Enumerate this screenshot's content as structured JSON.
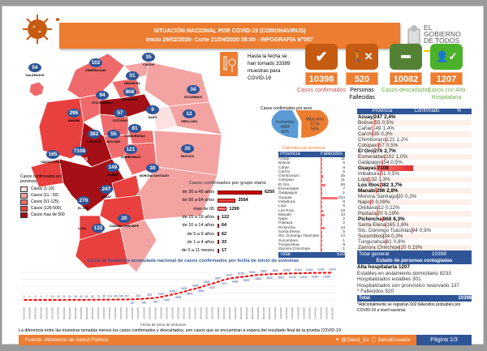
{
  "header": {
    "title": "SITUACIÓN NACIONAL POR  COVID-19 (CORONAVIRUS)",
    "subtitle": "Inicio 29/02/2020- Corte 21/04/2020 08:00  - INFOGRAFÍA N°057"
  },
  "logo": {
    "lines": [
      "EL",
      "GOBIERNO",
      "DE TODOS"
    ]
  },
  "samples": {
    "icon": "test-tube-icon",
    "text": "Hasta la fecha se han tomado 33389 muestras  para COVID-19"
  },
  "cards": [
    {
      "icon": "check-icon",
      "value": "10398",
      "label": "Casos confirmados",
      "color": "#c0504d",
      "bg": "#c55a11"
    },
    {
      "icon": "person-x-icon",
      "value": "520",
      "label": "Personas Fallecidas",
      "color": "#000000",
      "bg": "#c55a11"
    },
    {
      "icon": "minus-icon",
      "value": "10082",
      "label": "Casos descartados",
      "color": "#70ad47",
      "bg": "#548235"
    },
    {
      "icon": "person-check-icon",
      "value": "1207",
      "label": "Casos con Alta Hospitalaria",
      "color": "#70ad47",
      "bg": "#4cb22a"
    }
  ],
  "map": {
    "legend_title": "Casos confirmados por provincia",
    "legend": [
      {
        "label": "Casos (1-10)",
        "color": "#fde0e0"
      },
      {
        "label": "Casos (11 - 50)",
        "color": "#f4a3a3"
      },
      {
        "label": "Casos (51-125)",
        "color": "#ef6b6b"
      },
      {
        "label": "Casos (126-500)",
        "color": "#e8403f"
      },
      {
        "label": "Casos mas de 500",
        "color": "#a50f15"
      }
    ],
    "provinces": [
      {
        "name": "GALÁPAGOS",
        "value": "54"
      },
      {
        "name": "ESMERALDAS",
        "value": "102"
      },
      {
        "name": "CARCHI",
        "value": "35"
      },
      {
        "name": "IMBABURA",
        "value": "51"
      },
      {
        "name": "PICHINCHA",
        "value": "868"
      },
      {
        "name": "STO DOMINGO",
        "value": "94"
      },
      {
        "name": "SUCUMBIOS",
        "value": "34"
      },
      {
        "name": "NAPO",
        "value": "9"
      },
      {
        "name": "ORELLANA",
        "value": "12"
      },
      {
        "name": "MANABÍ",
        "value": "296"
      },
      {
        "name": "COTOPAXI",
        "value": "57"
      },
      {
        "name": "TUNGURAHUA",
        "value": "81"
      },
      {
        "name": "LOS RIOS",
        "value": "382"
      },
      {
        "name": "BOLIVAR",
        "value": "55"
      },
      {
        "name": "SANTA ELENA",
        "value": "165"
      },
      {
        "name": "GUAYAS",
        "value": "7108"
      },
      {
        "name": "CHIMBORAZO",
        "value": "121"
      },
      {
        "name": "PASTAZA",
        "value": "20"
      },
      {
        "name": "CAÑAR",
        "value": "149"
      },
      {
        "name": "MORONA SANTIAGO",
        "value": "30"
      },
      {
        "name": "AZUAY",
        "value": "247"
      },
      {
        "name": "EL ORO",
        "value": "276"
      },
      {
        "name": "ZAMORA CHINCHIPE",
        "value": "20"
      },
      {
        "name": "LOJA",
        "value": "132"
      }
    ]
  },
  "chart_data": [
    {
      "type": "pie",
      "title": "Casos confirmados por sexo",
      "slices": [
        {
          "label": "Masculino",
          "value": 5714,
          "pct": "55%",
          "color": "#ed7d31"
        },
        {
          "label": "Femenino",
          "value": 4684,
          "pct": "45%",
          "color": "#5b9bd5"
        }
      ]
    },
    {
      "type": "bar",
      "orientation": "horizontal",
      "title": "Casos confirmados por grupo etario",
      "categories": [
        "de 20 a 49 años",
        "de 50 a 64 años",
        "mas de 65",
        "de 15 a 19 años",
        "de 10 a 14 años",
        "de 5 a 9 años",
        "de 1 a 4 años",
        "de 0 a 11 meses"
      ],
      "values": [
        6250,
        2554,
        1299,
        122,
        64,
        62,
        33,
        17
      ],
      "colors": [
        "#c00000",
        "#e8403f",
        "#f08080",
        "#c0504d",
        "#c0504d",
        "#c0504d",
        "#c0504d",
        "#c0504d"
      ]
    },
    {
      "type": "table",
      "title": "Fallecidos por provincia",
      "headers": [
        "Provincia",
        "Fallecidos"
      ],
      "rows": [
        [
          "Azuay",
          11
        ],
        [
          "Bolívar",
          6
        ],
        [
          "Cañar",
          9
        ],
        [
          "Carchi",
          5
        ],
        [
          "Chimborazo",
          25
        ],
        [
          "Cotopaxi",
          11
        ],
        [
          "El Oro",
          58
        ],
        [
          "Esmeraldas",
          7
        ],
        [
          "Galápagos",
          1
        ],
        [
          "Guayas",
          234
        ],
        [
          "Imbabura",
          8
        ],
        [
          "Loja",
          6
        ],
        [
          "Los Ríos",
          19
        ],
        [
          "Manabí",
          43
        ],
        [
          "Napo",
          2
        ],
        [
          "Pastaza",
          2
        ],
        [
          "Pichincha",
          44
        ],
        [
          "Santa Elena",
          5
        ],
        [
          "Sto. Domingo Tsáchilas",
          13
        ],
        [
          "Sucumbios",
          1
        ],
        [
          "Tungurahua",
          9
        ],
        [
          "Zamora Chinchipe",
          1
        ]
      ],
      "total_label": "Total",
      "total": 520
    },
    {
      "type": "line",
      "title": "Línea de tendencia acumulada nacional de casos confirmados por fecha de inicio de síntomas",
      "xlabel": "Fecha de inicio de síntomas",
      "x": [
        "26/02/2020",
        "27/02/2020",
        "28/02/2020",
        "29/02/2020",
        "01/03/2020",
        "02/03/2020",
        "03/03/2020",
        "04/03/2020",
        "05/03/2020",
        "06/03/2020",
        "07/03/2020",
        "08/03/2020",
        "09/03/2020",
        "10/03/2020",
        "11/03/2020",
        "12/03/2020",
        "13/03/2020",
        "14/03/2020",
        "15/03/2020",
        "16/03/2020",
        "17/03/2020",
        "18/03/2020",
        "19/03/2020",
        "20/03/2020",
        "21/03/2020",
        "22/03/2020",
        "23/03/2020",
        "24/03/2020",
        "25/03/2020",
        "26/03/2020",
        "27/03/2020",
        "28/03/2020",
        "29/03/2020",
        "30/03/2020",
        "31/03/2020",
        "01/04/2020",
        "02/04/2020",
        "03/04/2020",
        "04/04/2020",
        "05/04/2020",
        "06/04/2020",
        "07/04/2020",
        "08/04/2020",
        "09/04/2020",
        "10/04/2020",
        "11/04/2020",
        "12/04/2020",
        "13/04/2020",
        "14/04/2020",
        "15/04/2020",
        "16/04/2020",
        "17/04/2020",
        "18/04/2020",
        "19/04/2020",
        "20/04/2020"
      ],
      "values": [
        1,
        2,
        3,
        4,
        7,
        10,
        15,
        21,
        24,
        30,
        42,
        51,
        62,
        73,
        99,
        114,
        149,
        165,
        207,
        237,
        333,
        455,
        593,
        789,
        1129,
        1610,
        2063,
        2535,
        3105,
        3803,
        4239,
        4894,
        5628,
        6221,
        6907,
        7670,
        8167,
        8480,
        8736,
        8994,
        9300,
        9584,
        9691,
        9815,
        9850,
        9960,
        10052,
        10114,
        10163,
        10211,
        10262,
        10307,
        10332,
        10355,
        10374
      ],
      "color": "#ff0000",
      "grid": true
    }
  ],
  "province_table": {
    "headers": [
      "Provincia",
      "Confirmado",
      "%"
    ],
    "rows": [
      [
        "Azuay",
        "247",
        "2,4%",
        true
      ],
      [
        "Bolívar",
        "55",
        "0,5%",
        false
      ],
      [
        "Cañar",
        "149",
        "1,4%",
        false
      ],
      [
        "Carchi",
        "35",
        "0,3%",
        false
      ],
      [
        "Chimborazo",
        "121",
        "1,2%",
        false
      ],
      [
        "Cotopaxi",
        "57",
        "0,5%",
        false
      ],
      [
        "El Oro",
        "276",
        "2,7%",
        true
      ],
      [
        "Esmeraldas",
        "102",
        "1,0%",
        false
      ],
      [
        "Galápagos",
        "54",
        "0,5%",
        false
      ],
      [
        "Guayas",
        "7108",
        "68,4%",
        true
      ],
      [
        "Imbabura",
        "51",
        "0,5%",
        false
      ],
      [
        "Loja",
        "132",
        "1,3%",
        false
      ],
      [
        "Los Ríos",
        "382",
        "3,7%",
        true
      ],
      [
        "Manabí",
        "296",
        "2,8%",
        true
      ],
      [
        "Morona Santiago",
        "30",
        "0,3%",
        false
      ],
      [
        "Napo",
        "9",
        "0,09%",
        false
      ],
      [
        "Orellana",
        "12",
        "0,12%",
        false
      ],
      [
        "Pastaza",
        "20",
        "0,19%",
        false
      ],
      [
        "Pichincha",
        "868",
        "8,3%",
        true
      ],
      [
        "Santa Elena",
        "165",
        "1,6%",
        false
      ],
      [
        "Sto. Domingo Tsáchilas",
        "94",
        "0,9%",
        false
      ],
      [
        "Sucumbios",
        "34",
        "0,3%",
        false
      ],
      [
        "Tungurahua",
        "81",
        "0,8%",
        false
      ],
      [
        "Zamora Chinchipe",
        "20",
        "0,19%",
        false
      ]
    ],
    "total_label": "Total general",
    "total": "10398"
  },
  "estado": {
    "title": "Estado de personas contagiadas",
    "rows": [
      [
        "Alta hospitalaria",
        "1207"
      ],
      [
        "Estables en aislamiento domiciliario",
        "8233"
      ],
      [
        "Hospitalizados estables",
        "301"
      ],
      [
        "Hospitalizados con pronóstico reservado",
        "137"
      ],
      [
        "* Fallecidos",
        "520"
      ]
    ],
    "total_label": "Total",
    "total": "10398",
    "note": "*Adicionalmente se registran 902 fallecidos probables por COVID-19 a nivel nacional."
  },
  "footnote": "La diferencia entre las muestras tomadas menos los casos confirmados y descartados, son casos que se encuentran a espera del resultado final de la prueba COVID-19",
  "footer": {
    "source": "Fuente: Ministerio de Salud Pública",
    "twitter": "@Salud_Ec",
    "facebook": "SaludEcuador",
    "page": "Página 1/3"
  }
}
